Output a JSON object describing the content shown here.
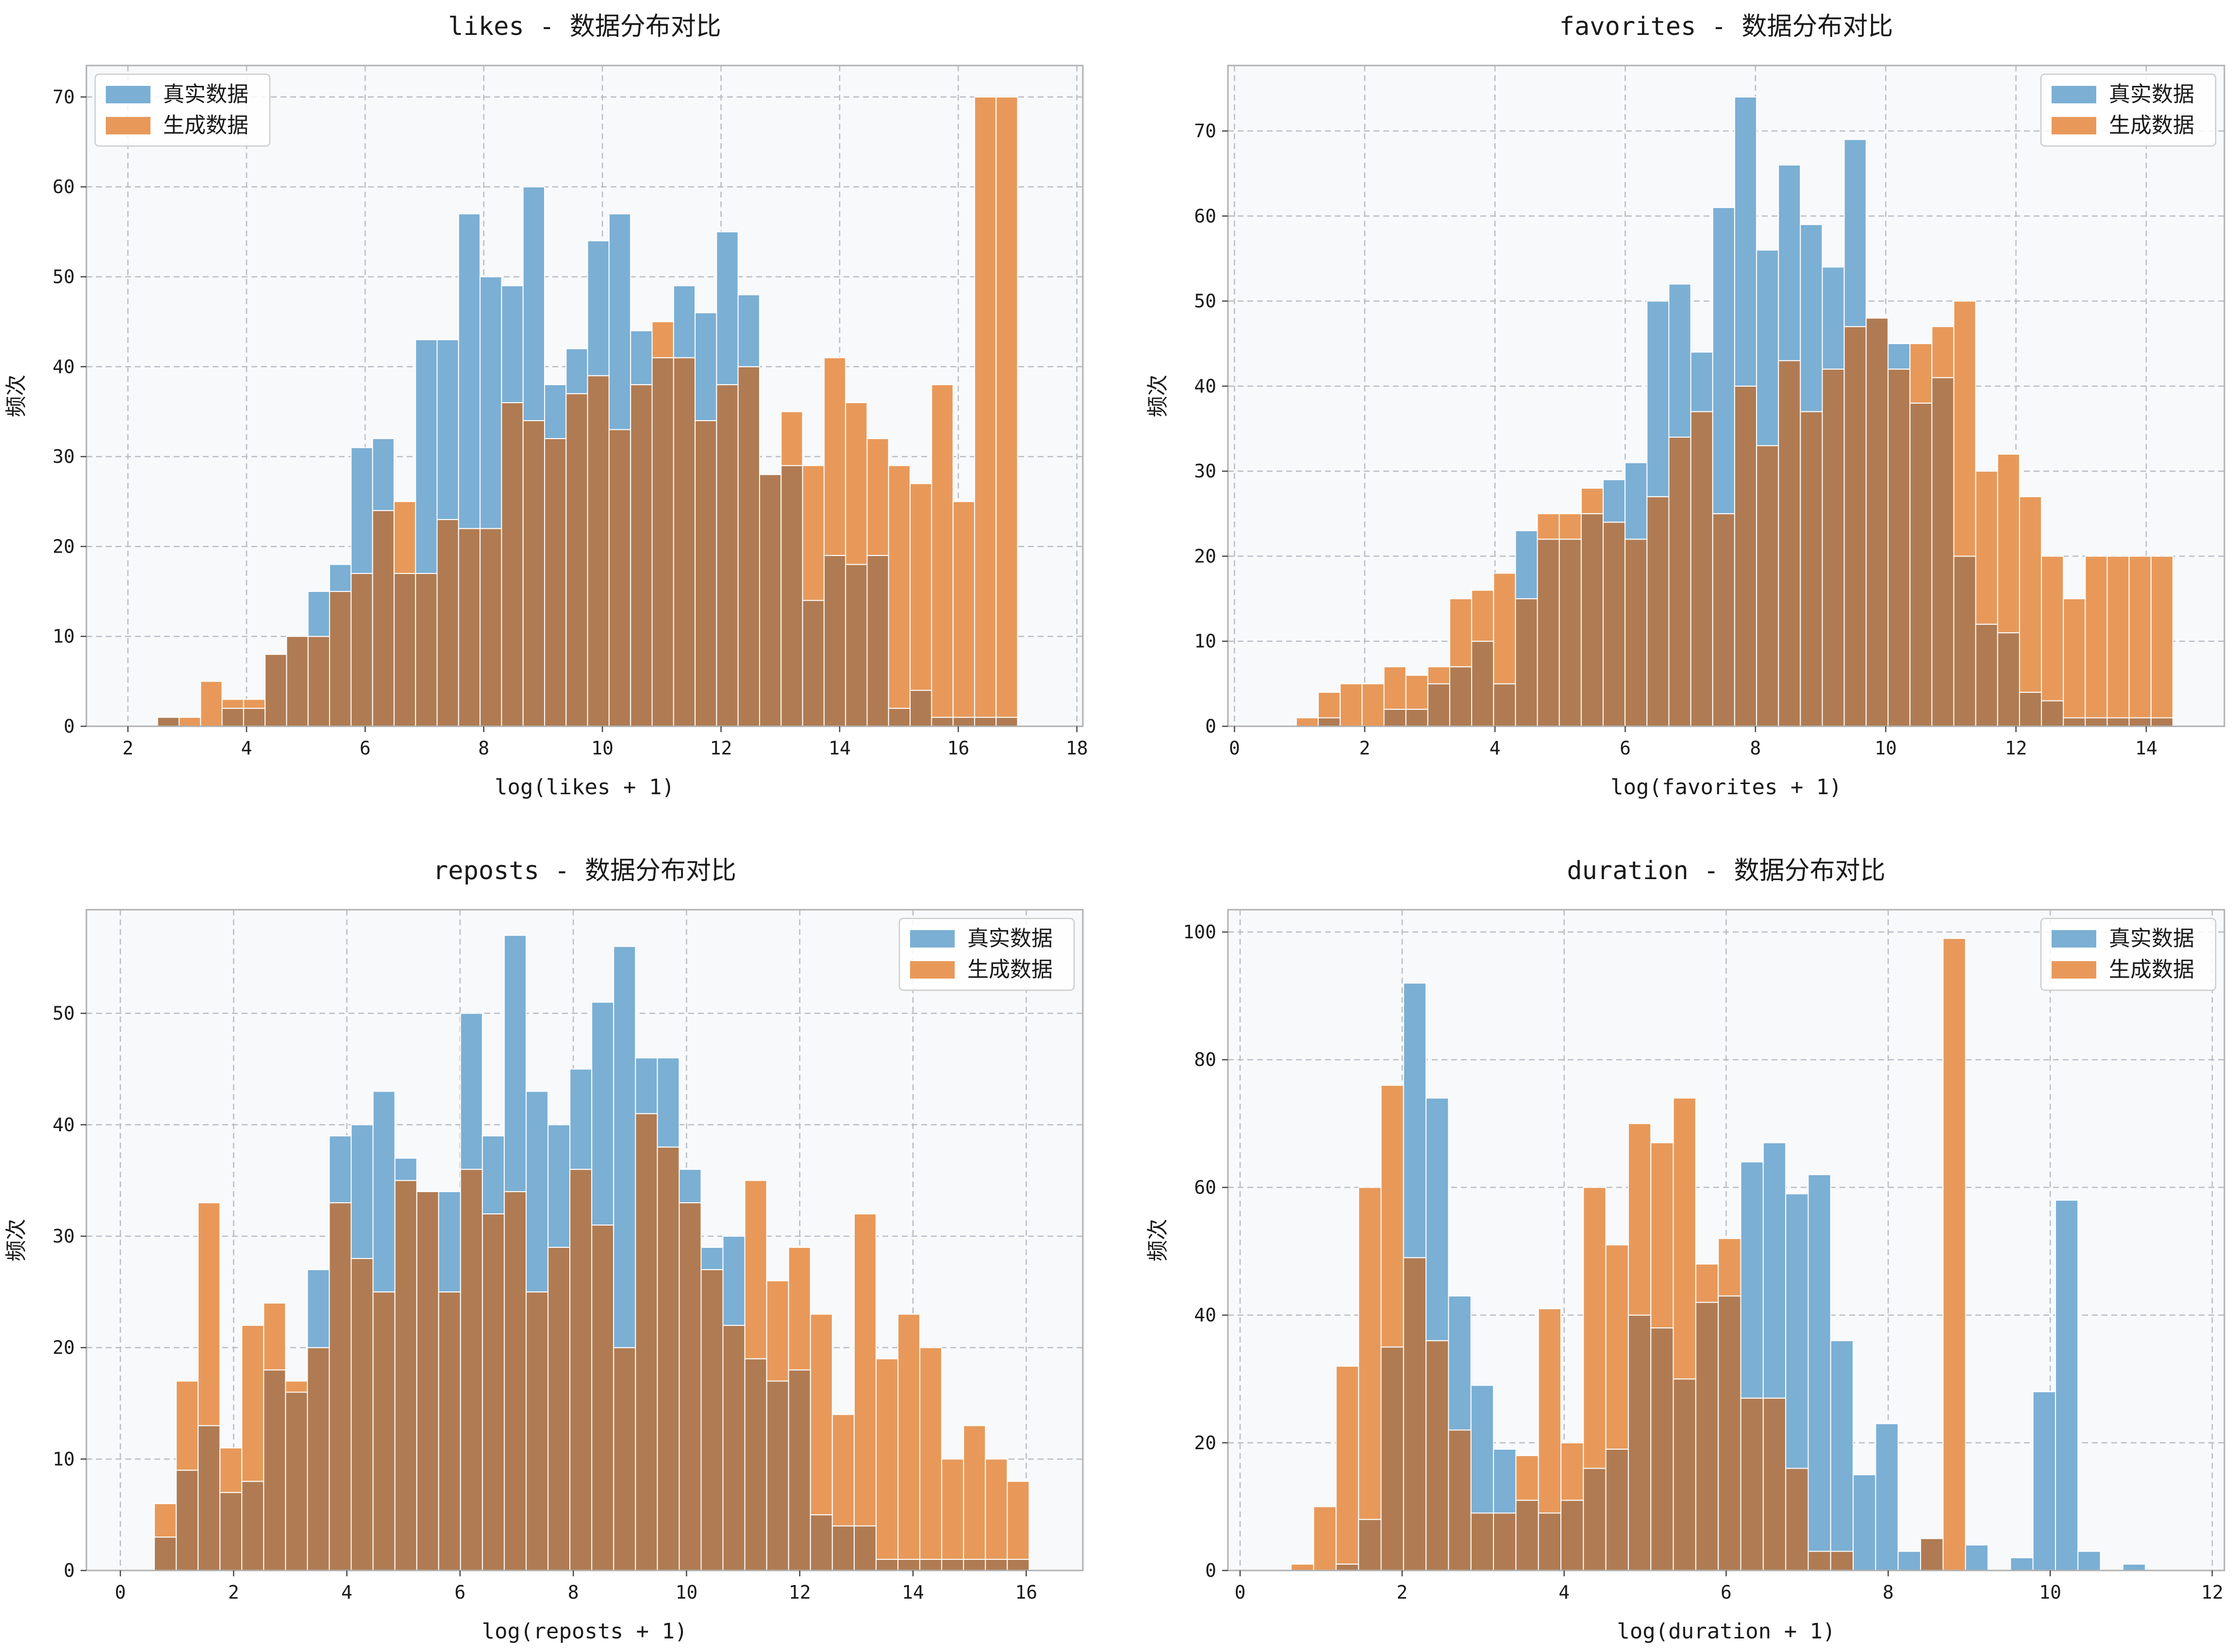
{
  "colors": {
    "real": "#7BAFD4",
    "generated": "#E8995A",
    "overlap": "#B07B52",
    "plot_bg": "#F7F9FB",
    "grid": "#B8BDC4"
  },
  "chart_data": [
    {
      "type": "bar",
      "title": "likes - 数据分布对比",
      "xlabel": "log(likes + 1)",
      "ylabel": "频次",
      "xlim": [
        1.3,
        18.1
      ],
      "ylim": [
        0,
        73.5
      ],
      "xticks": [
        2,
        4,
        6,
        8,
        10,
        12,
        14,
        16,
        18
      ],
      "yticks": [
        0,
        10,
        20,
        30,
        40,
        50,
        60,
        70
      ],
      "legend_position": "upper-left",
      "grid": true,
      "bin_start": 2.5,
      "bin_width": 0.3625,
      "series": [
        {
          "name": "真实数据",
          "values": [
            1,
            0,
            0,
            2,
            2,
            8,
            10,
            15,
            18,
            31,
            32,
            17,
            43,
            43,
            57,
            50,
            49,
            60,
            38,
            42,
            54,
            57,
            44,
            41,
            49,
            46,
            55,
            48,
            28,
            29,
            14,
            19,
            18,
            19,
            2,
            4,
            1,
            1,
            1,
            1
          ]
        },
        {
          "name": "生成数据",
          "values": [
            1,
            1,
            5,
            3,
            3,
            8,
            10,
            10,
            15,
            17,
            24,
            25,
            17,
            23,
            22,
            22,
            36,
            34,
            32,
            37,
            39,
            33,
            38,
            45,
            41,
            34,
            38,
            40,
            28,
            35,
            29,
            41,
            36,
            32,
            29,
            27,
            38,
            25,
            70,
            70
          ]
        }
      ]
    },
    {
      "type": "bar",
      "title": "favorites - 数据分布对比",
      "xlabel": "log(favorites + 1)",
      "ylabel": "频次",
      "xlim": [
        -0.1,
        15.2
      ],
      "ylim": [
        0,
        77.7
      ],
      "xticks": [
        0,
        2,
        4,
        6,
        8,
        10,
        12,
        14
      ],
      "yticks": [
        0,
        10,
        20,
        30,
        40,
        50,
        60,
        70
      ],
      "legend_position": "upper-right",
      "grid": true,
      "bin_start": 0.95,
      "bin_width": 0.3365,
      "series": [
        {
          "name": "真实数据",
          "values": [
            0,
            1,
            0,
            0,
            2,
            2,
            5,
            7,
            10,
            5,
            23,
            22,
            22,
            25,
            29,
            31,
            50,
            52,
            44,
            61,
            74,
            56,
            66,
            59,
            54,
            69,
            48,
            45,
            38,
            41,
            20,
            12,
            11,
            4,
            3,
            1,
            1,
            1,
            1,
            1
          ]
        },
        {
          "name": "生成数据",
          "values": [
            1,
            4,
            5,
            5,
            7,
            6,
            7,
            15,
            16,
            18,
            15,
            25,
            25,
            28,
            24,
            22,
            27,
            34,
            37,
            25,
            40,
            33,
            43,
            37,
            42,
            47,
            48,
            42,
            45,
            47,
            50,
            30,
            32,
            27,
            20,
            15,
            20,
            20,
            20,
            20
          ]
        }
      ]
    },
    {
      "type": "bar",
      "title": "reposts - 数据分布对比",
      "xlabel": "log(reposts + 1)",
      "ylabel": "频次",
      "xlim": [
        -0.6,
        17.0
      ],
      "ylim": [
        0,
        59.3
      ],
      "xticks": [
        0,
        2,
        4,
        6,
        8,
        10,
        12,
        14,
        16
      ],
      "yticks": [
        0,
        10,
        20,
        30,
        40,
        50
      ],
      "legend_position": "upper-right",
      "grid": true,
      "bin_start": 0.6,
      "bin_width": 0.3863,
      "series": [
        {
          "name": "真实数据",
          "values": [
            3,
            9,
            13,
            7,
            8,
            18,
            16,
            27,
            39,
            40,
            43,
            37,
            34,
            34,
            50,
            39,
            57,
            43,
            40,
            45,
            51,
            56,
            46,
            46,
            36,
            29,
            30,
            19,
            17,
            18,
            5,
            4,
            4,
            1,
            1,
            1,
            1,
            1,
            1,
            1
          ]
        },
        {
          "name": "生成数据",
          "values": [
            6,
            17,
            33,
            11,
            22,
            24,
            17,
            20,
            33,
            28,
            25,
            35,
            34,
            25,
            36,
            32,
            34,
            25,
            29,
            36,
            31,
            20,
            41,
            38,
            33,
            27,
            22,
            35,
            26,
            29,
            23,
            14,
            32,
            19,
            23,
            20,
            10,
            13,
            10,
            8
          ]
        }
      ]
    },
    {
      "type": "bar",
      "title": "duration - 数据分布对比",
      "xlabel": "log(duration + 1)",
      "ylabel": "频次",
      "xlim": [
        -0.15,
        12.15
      ],
      "ylim": [
        0,
        103.5
      ],
      "xticks": [
        0,
        2,
        4,
        6,
        8,
        10,
        12
      ],
      "yticks": [
        0,
        20,
        40,
        60,
        80,
        100
      ],
      "legend_position": "upper-right",
      "grid": true,
      "bin_start": 0.63,
      "bin_width": 0.2775,
      "series": [
        {
          "name": "真实数据",
          "values": [
            0,
            0,
            1,
            8,
            35,
            92,
            74,
            43,
            29,
            19,
            11,
            9,
            11,
            16,
            19,
            40,
            38,
            30,
            42,
            43,
            64,
            67,
            59,
            62,
            36,
            15,
            23,
            3,
            5,
            0,
            4,
            0,
            2,
            28,
            58,
            3,
            0,
            1,
            0,
            0
          ]
        },
        {
          "name": "生成数据",
          "values": [
            1,
            10,
            32,
            60,
            76,
            49,
            36,
            22,
            9,
            9,
            18,
            41,
            20,
            60,
            51,
            70,
            67,
            74,
            48,
            52,
            27,
            27,
            16,
            3,
            3,
            0,
            0,
            0,
            5,
            99,
            0,
            0,
            0,
            0,
            0,
            0,
            0,
            0,
            0,
            0
          ]
        }
      ]
    }
  ]
}
